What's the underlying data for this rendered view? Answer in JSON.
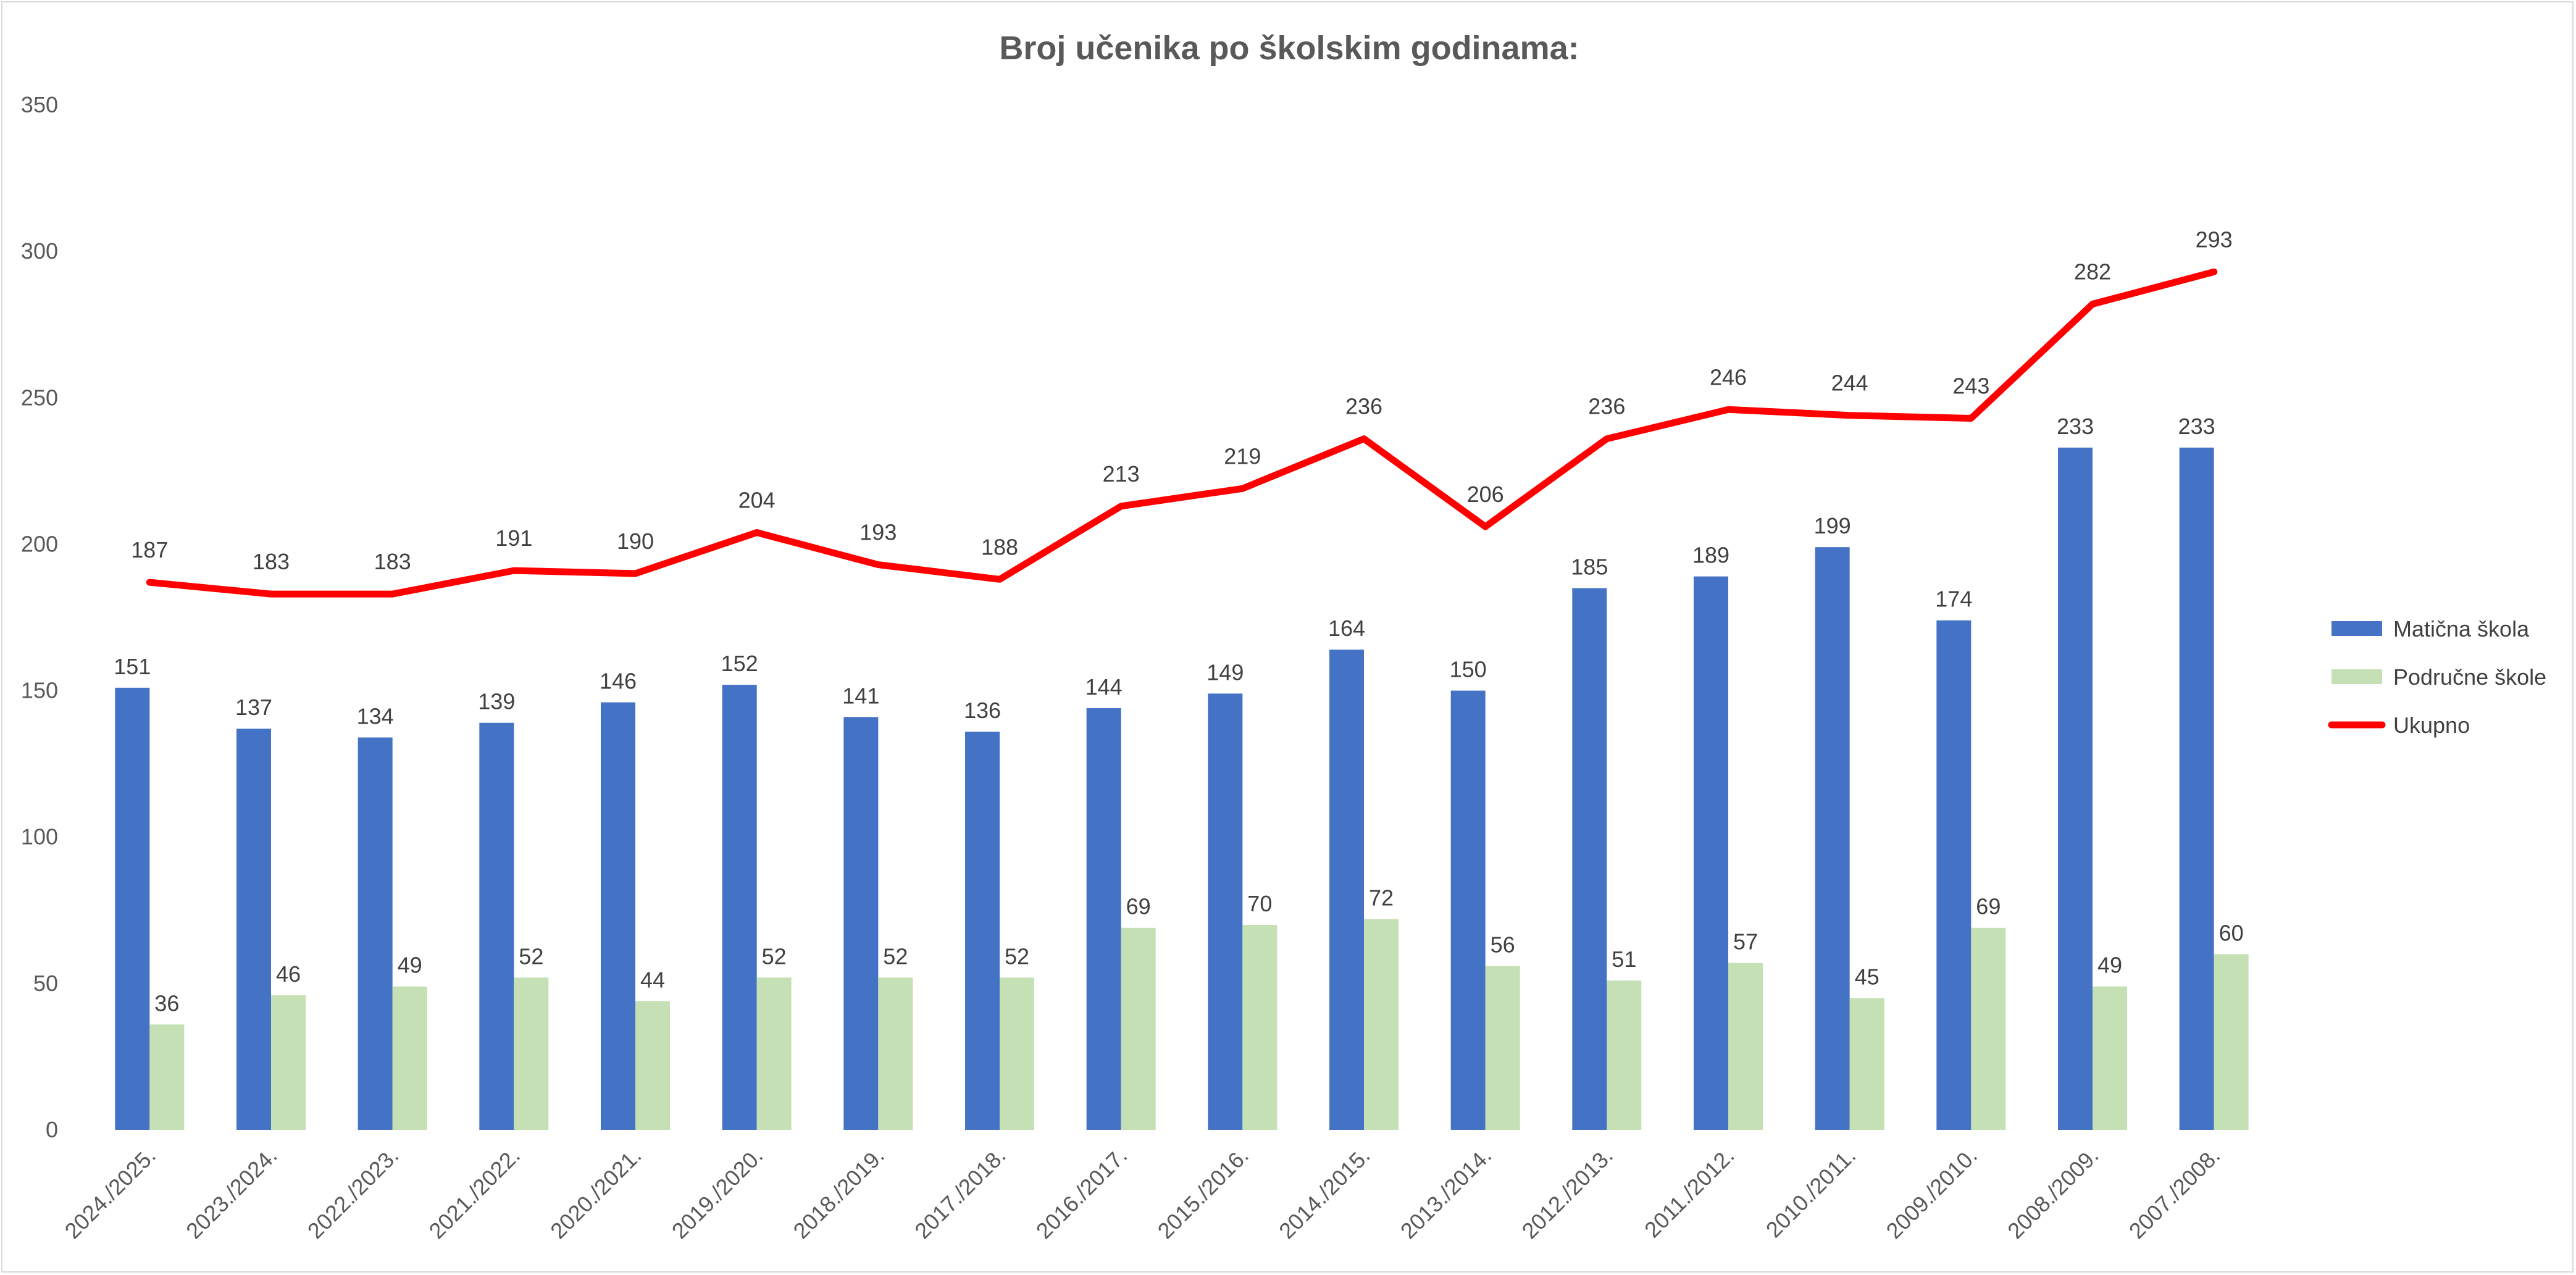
{
  "chart_data": {
    "type": "bar",
    "title": "Broj učenika po školskim godinama:",
    "categories": [
      "2024./2025.",
      "2023./2024.",
      "2022./2023.",
      "2021./2022.",
      "2020./2021.",
      "2019./2020.",
      "2018./2019.",
      "2017./2018.",
      "2016./2017.",
      "2015./2016.",
      "2014./2015.",
      "2013./2014.",
      "2012./2013.",
      "2011./2012.",
      "2010./2011.",
      "2009./2010.",
      "2008./2009.",
      "2007./2008."
    ],
    "series": [
      {
        "name": "Matična škola",
        "type": "bar",
        "color": "#4472C4",
        "values": [
          151,
          137,
          134,
          139,
          146,
          152,
          141,
          136,
          144,
          149,
          164,
          150,
          185,
          189,
          199,
          174,
          233,
          233
        ]
      },
      {
        "name": "Područne škole",
        "type": "bar",
        "color": "#C5E0B4",
        "values": [
          36,
          46,
          49,
          52,
          44,
          52,
          52,
          52,
          69,
          70,
          72,
          56,
          51,
          57,
          45,
          69,
          49,
          60
        ]
      },
      {
        "name": "Ukupno",
        "type": "line",
        "color": "#FF0000",
        "values": [
          187,
          183,
          183,
          191,
          190,
          204,
          193,
          188,
          213,
          219,
          236,
          206,
          236,
          246,
          244,
          243,
          282,
          293
        ]
      }
    ],
    "yticks": [
      "0",
      "50",
      "100",
      "150",
      "200",
      "250",
      "300",
      "350"
    ],
    "ylim": [
      0,
      350
    ],
    "grid": false,
    "legend": "right",
    "xlabel": "",
    "ylabel": ""
  }
}
